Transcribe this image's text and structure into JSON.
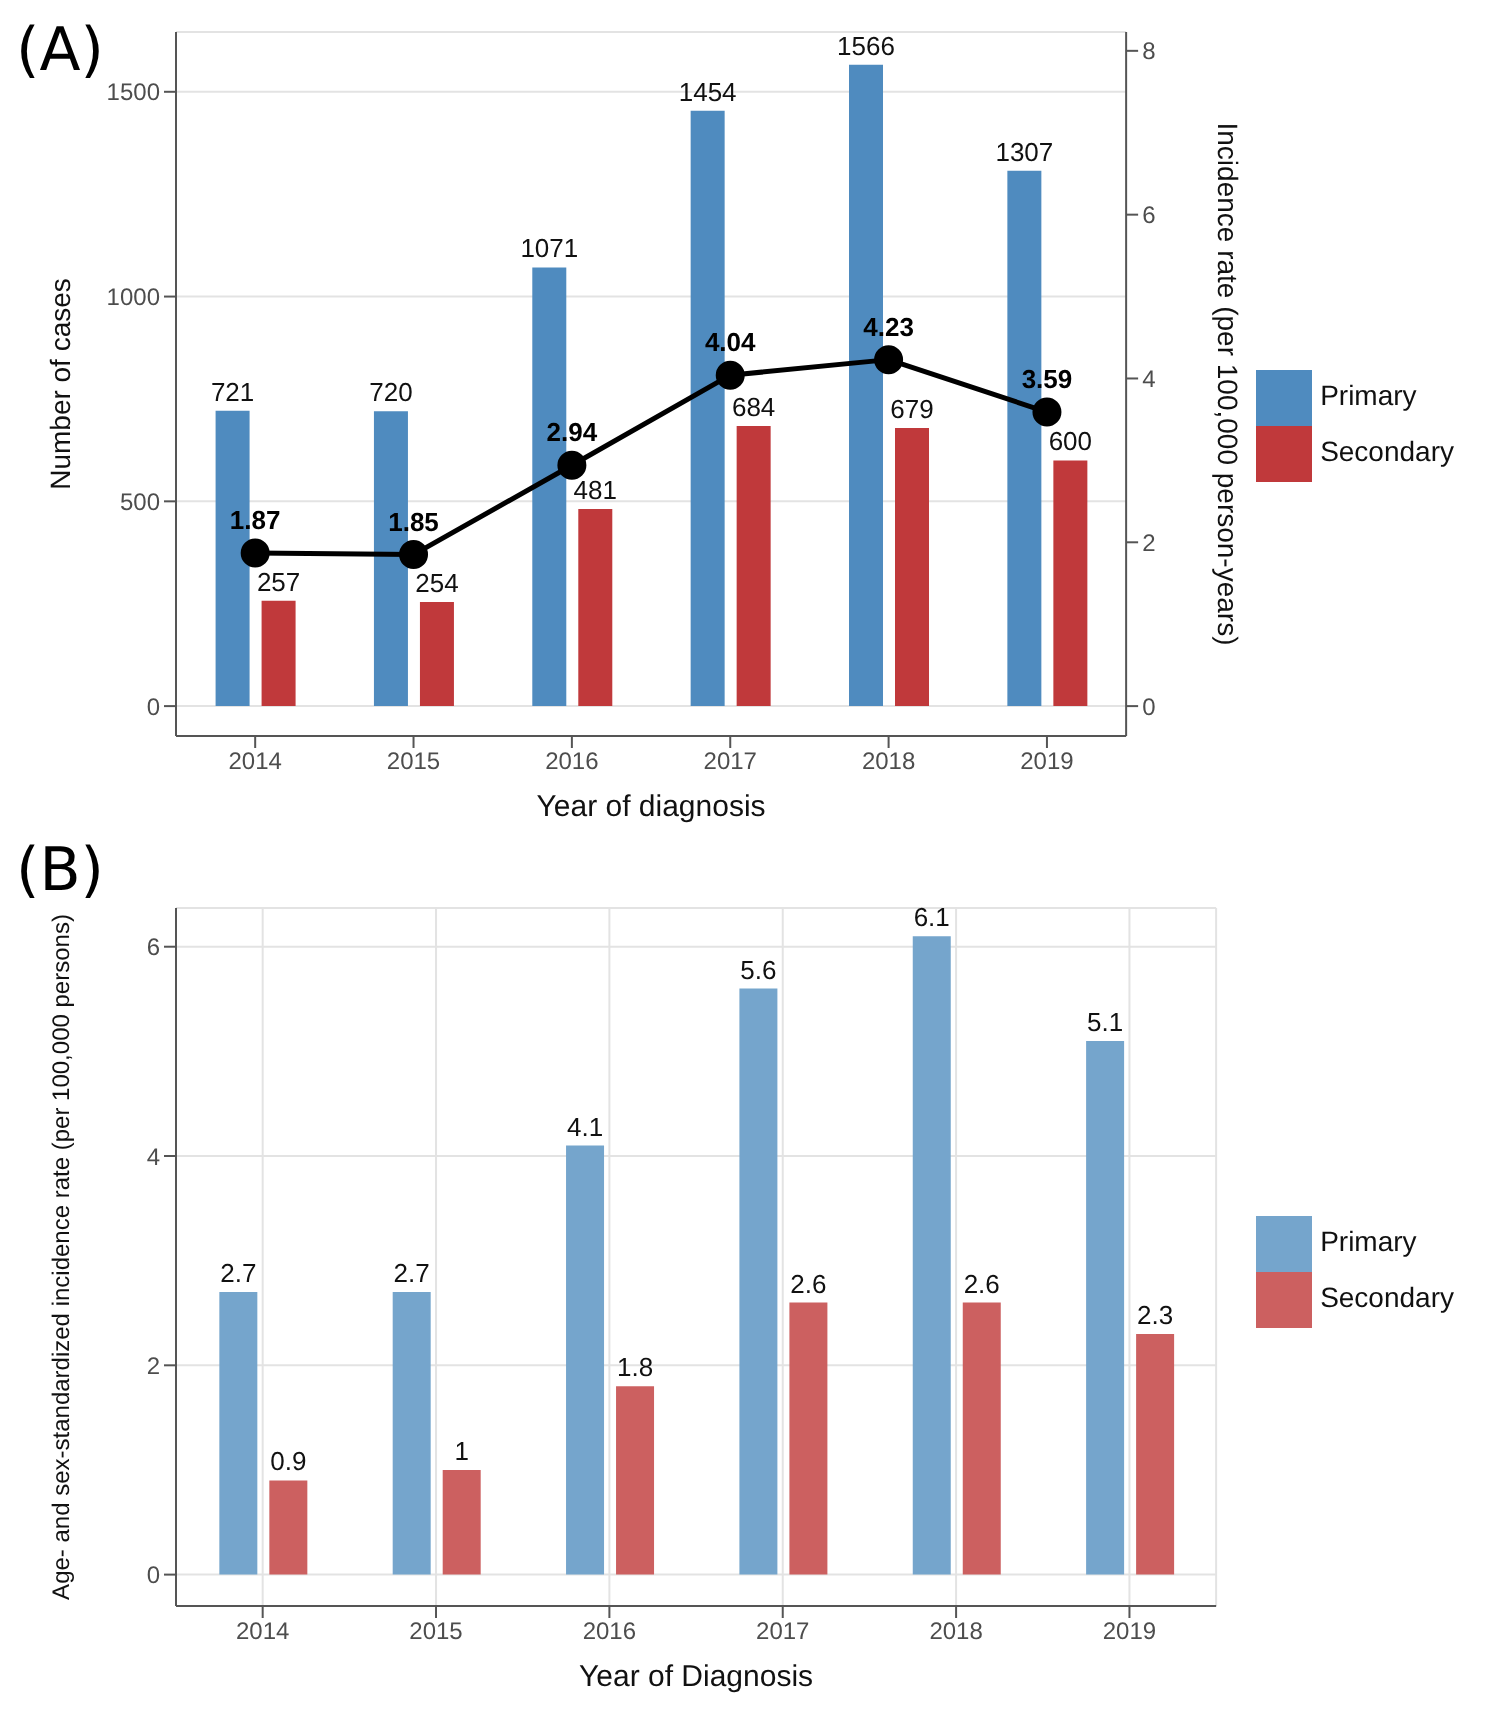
{
  "chart_data": [
    {
      "type": "bar",
      "title": "(A)",
      "xlabel": "Year of diagnosis",
      "ylabel": "Number of cases",
      "y2label": "Incidence rate (per 100,000 person-years)",
      "categories": [
        "2014",
        "2015",
        "2016",
        "2017",
        "2018",
        "2019"
      ],
      "series": [
        {
          "name": "Primary",
          "color": "#4f8bbf",
          "values": [
            721,
            720,
            1071,
            1454,
            1566,
            1307
          ]
        },
        {
          "name": "Secondary",
          "color": "#c0393b",
          "values": [
            257,
            254,
            481,
            684,
            679,
            600
          ]
        },
        {
          "type": "line",
          "axis": "y2",
          "color": "#000000",
          "values": [
            1.87,
            1.85,
            2.94,
            4.04,
            4.23,
            3.59
          ]
        }
      ],
      "ylim": [
        -73,
        1646
      ],
      "yticks": [
        0,
        500,
        1000,
        1500
      ],
      "y2lim": [
        -0.365,
        8.23
      ],
      "y2ticks": [
        0,
        2,
        4,
        6,
        8
      ],
      "grid": "y",
      "legend": "right",
      "marker": "circle",
      "line_style": "solid",
      "data_labels": true
    },
    {
      "type": "bar",
      "title": "(B)",
      "xlabel": "Year of Diagnosis",
      "ylabel": "Age- and sex-standardized incidence rate (per 100,000 persons)",
      "categories": [
        "2014",
        "2015",
        "2016",
        "2017",
        "2018",
        "2019"
      ],
      "series": [
        {
          "name": "Primary",
          "color": "#75a5cc",
          "values": [
            2.7,
            2.7,
            4.1,
            5.6,
            6.1,
            5.1
          ]
        },
        {
          "name": "Secondary",
          "color": "#cc6060",
          "values": [
            0.9,
            1,
            1.8,
            2.6,
            2.6,
            2.3
          ]
        }
      ],
      "ylim": [
        -0.3,
        6.37
      ],
      "yticks": [
        0,
        2,
        4,
        6
      ],
      "grid": true,
      "legend": "right",
      "data_labels": true
    }
  ]
}
